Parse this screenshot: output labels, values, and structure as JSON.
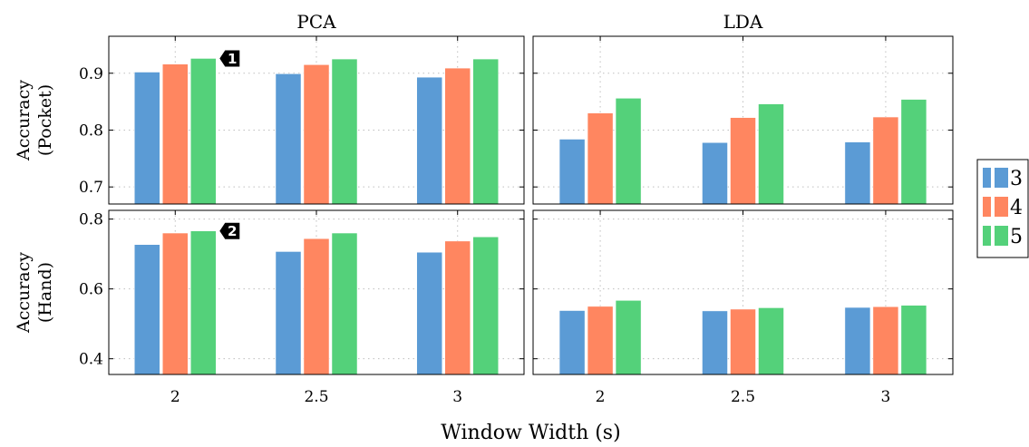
{
  "chart_data": {
    "type": "bar",
    "categories": [
      "2",
      "2.5",
      "3"
    ],
    "xlabel": "Window Width (s)",
    "legend": {
      "position": "right",
      "entries": [
        {
          "label": "3",
          "color": "#5b9bd5"
        },
        {
          "label": "4",
          "color": "#ff8660"
        },
        {
          "label": "5",
          "color": "#54d17a"
        }
      ]
    },
    "grid": true,
    "columns": [
      "PCA",
      "LDA"
    ],
    "rows": [
      {
        "ylabel_line1": "Accuracy",
        "ylabel_line2": "(Pocket)",
        "ylim": [
          0.67,
          0.965
        ],
        "yticks": [
          "0.7",
          "0.8",
          "0.9"
        ]
      },
      {
        "ylabel_line1": "Accuracy",
        "ylabel_line2": "(Hand)",
        "ylim": [
          0.355,
          0.825
        ],
        "yticks": [
          "0.4",
          "0.6",
          "0.8"
        ]
      }
    ],
    "panels": [
      {
        "column": "PCA",
        "row": "Pocket",
        "series": [
          {
            "name": "3",
            "values": [
              0.902,
              0.899,
              0.893
            ]
          },
          {
            "name": "4",
            "values": [
              0.916,
              0.915,
              0.909
            ]
          },
          {
            "name": "5",
            "values": [
              0.926,
              0.925,
              0.925
            ]
          }
        ],
        "marker": {
          "label": "1",
          "category": "2",
          "series": "5"
        }
      },
      {
        "column": "LDA",
        "row": "Pocket",
        "series": [
          {
            "name": "3",
            "values": [
              0.784,
              0.778,
              0.779
            ]
          },
          {
            "name": "4",
            "values": [
              0.83,
              0.822,
              0.823
            ]
          },
          {
            "name": "5",
            "values": [
              0.856,
              0.846,
              0.854
            ]
          }
        ]
      },
      {
        "column": "PCA",
        "row": "Hand",
        "series": [
          {
            "name": "3",
            "values": [
              0.727,
              0.707,
              0.705
            ]
          },
          {
            "name": "4",
            "values": [
              0.76,
              0.744,
              0.737
            ]
          },
          {
            "name": "5",
            "values": [
              0.766,
              0.76,
              0.749
            ]
          }
        ],
        "marker": {
          "label": "2",
          "category": "2",
          "series": "5"
        }
      },
      {
        "column": "LDA",
        "row": "Hand",
        "series": [
          {
            "name": "3",
            "values": [
              0.538,
              0.537,
              0.547
            ]
          },
          {
            "name": "4",
            "values": [
              0.55,
              0.542,
              0.549
            ]
          },
          {
            "name": "5",
            "values": [
              0.567,
              0.546,
              0.553
            ]
          }
        ]
      }
    ]
  }
}
